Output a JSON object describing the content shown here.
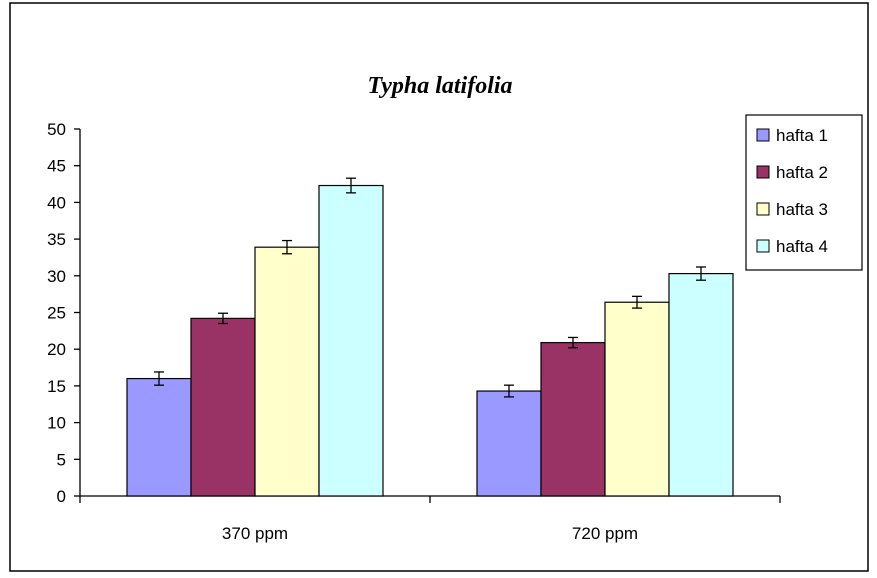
{
  "chart_data": {
    "type": "bar",
    "title": "Typha latifolia",
    "xlabel": "",
    "ylabel": "",
    "categories": [
      "370 ppm",
      "720 ppm"
    ],
    "ylim": [
      0,
      50
    ],
    "yticks": [
      0,
      5,
      10,
      15,
      20,
      25,
      30,
      35,
      40,
      45,
      50
    ],
    "grid": false,
    "legend_position": "right",
    "series": [
      {
        "name": "hafta 1",
        "color": "#9999ff",
        "values": [
          16.0,
          14.3
        ],
        "errors": [
          0.9,
          0.8
        ]
      },
      {
        "name": "hafta 2",
        "color": "#993366",
        "values": [
          24.2,
          20.9
        ],
        "errors": [
          0.7,
          0.7
        ]
      },
      {
        "name": "hafta 3",
        "color": "#ffffcc",
        "values": [
          33.9,
          26.4
        ],
        "errors": [
          0.9,
          0.8
        ]
      },
      {
        "name": "hafta 4",
        "color": "#ccffff",
        "values": [
          42.3,
          30.3
        ],
        "errors": [
          1.0,
          0.9
        ]
      }
    ]
  }
}
